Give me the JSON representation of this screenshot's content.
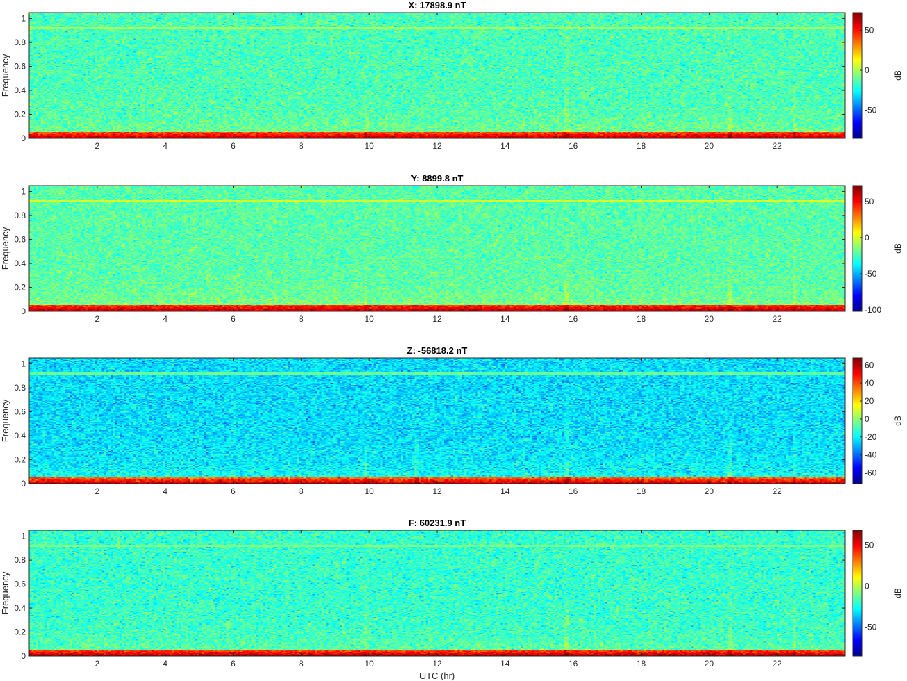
{
  "figure": {
    "xlabel": "UTC (hr)"
  },
  "colormap": [
    "#00008f",
    "#0000ff",
    "#0080ff",
    "#00ffff",
    "#80ff80",
    "#ffff00",
    "#ff8000",
    "#ff0000",
    "#800000"
  ],
  "chart_data": [
    {
      "type": "heatmap",
      "title": "X: 17898.9 nT",
      "xlabel": "",
      "ylabel": "Frequency",
      "x_ticks": [
        2,
        4,
        6,
        8,
        10,
        12,
        14,
        16,
        18,
        20,
        22
      ],
      "y_ticks": [
        0,
        0.2,
        0.4,
        0.6,
        0.8,
        1
      ],
      "xlim": [
        0,
        24
      ],
      "ylim": [
        0,
        1.05
      ],
      "colorbar": {
        "label": "dB",
        "range": [
          -85,
          72
        ],
        "ticks": [
          -50,
          0,
          50
        ]
      },
      "features": {
        "background_db": -15,
        "low_freq_db": 65,
        "line_freq": 0.92,
        "line_db": 0,
        "events_hr": [
          9.9,
          15.8,
          20.6,
          22.5
        ]
      }
    },
    {
      "type": "heatmap",
      "title": "Y: 8899.8 nT",
      "xlabel": "",
      "ylabel": "Frequency",
      "x_ticks": [
        2,
        4,
        6,
        8,
        10,
        12,
        14,
        16,
        18,
        20,
        22
      ],
      "y_ticks": [
        0,
        0.2,
        0.4,
        0.6,
        0.8,
        1
      ],
      "xlim": [
        0,
        24
      ],
      "ylim": [
        0,
        1.05
      ],
      "colorbar": {
        "label": "dB",
        "range": [
          -102,
          72
        ],
        "ticks": [
          -100,
          -50,
          0,
          50
        ]
      },
      "features": {
        "background_db": -22,
        "low_freq_db": 65,
        "line_freq": 0.92,
        "line_db": 0,
        "events_hr": [
          9.9,
          15.8,
          20.6,
          22.5
        ]
      }
    },
    {
      "type": "heatmap",
      "title": "Z: -56818.2 nT",
      "xlabel": "",
      "ylabel": "Frequency",
      "x_ticks": [
        2,
        4,
        6,
        8,
        10,
        12,
        14,
        16,
        18,
        20,
        22
      ],
      "y_ticks": [
        0,
        0.2,
        0.4,
        0.6,
        0.8,
        1
      ],
      "xlim": [
        0,
        24
      ],
      "ylim": [
        0,
        1.05
      ],
      "colorbar": {
        "label": "dB",
        "range": [
          -72,
          68
        ],
        "ticks": [
          -60,
          -40,
          -20,
          0,
          20,
          40,
          60
        ]
      },
      "features": {
        "background_db": -24,
        "low_freq_db": 60,
        "line_freq": 0.92,
        "line_db": -5,
        "events_hr": [
          9.9,
          11.4,
          15.8,
          20.6,
          22.5
        ]
      }
    },
    {
      "type": "heatmap",
      "title": "F: 60231.9 nT",
      "xlabel": "UTC (hr)",
      "ylabel": "Frequency",
      "x_ticks": [
        2,
        4,
        6,
        8,
        10,
        12,
        14,
        16,
        18,
        20,
        22
      ],
      "y_ticks": [
        0,
        0.2,
        0.4,
        0.6,
        0.8,
        1
      ],
      "xlim": [
        0,
        24
      ],
      "ylim": [
        0,
        1.05
      ],
      "colorbar": {
        "label": "dB",
        "range": [
          -85,
          68
        ],
        "ticks": [
          -50,
          0,
          50
        ]
      },
      "features": {
        "background_db": -20,
        "low_freq_db": 62,
        "line_freq": 0.92,
        "line_db": -8,
        "events_hr": [
          9.9,
          15.8,
          20.6,
          22.5
        ]
      }
    }
  ]
}
